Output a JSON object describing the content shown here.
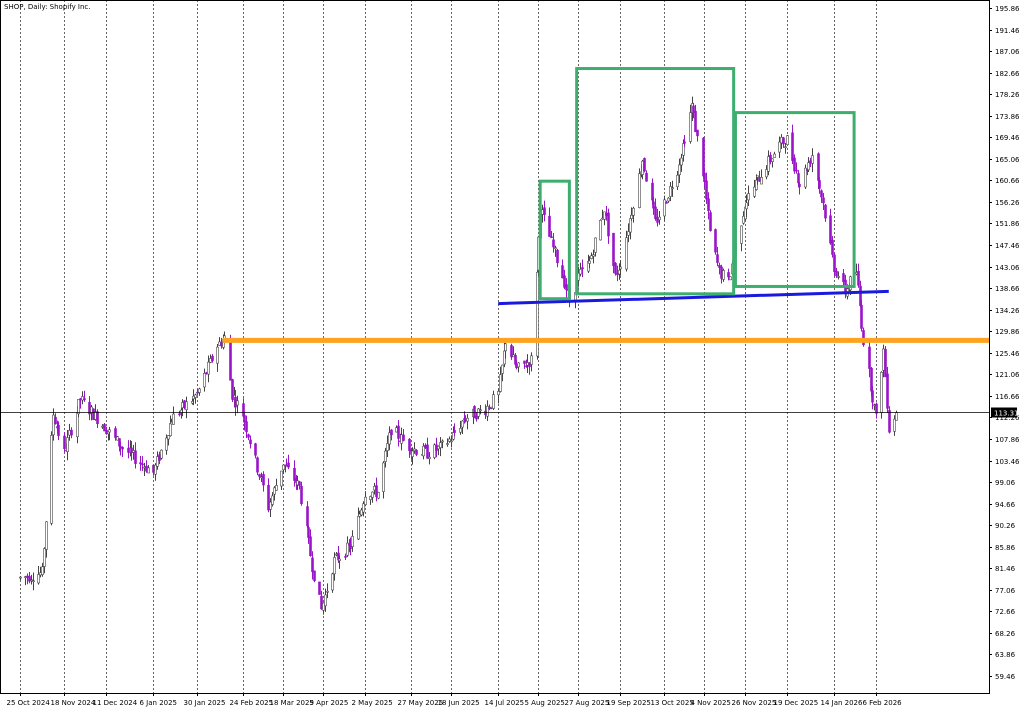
{
  "title": "SHOP, Daily:  Shopify Inc.",
  "colors": {
    "background": "#ffffff",
    "grid": "#000000",
    "bull_candle": "#444444",
    "bear_candle": "#9a14c8",
    "support_line": "#1a1adf",
    "resistance_line": "#ffa21f",
    "box": "#3dae6e",
    "price_line": "#000000",
    "price_tag_bg": "#000000",
    "price_tag_text": "#ffffff"
  },
  "chart_data": {
    "type": "candlestick",
    "title": "SHOP, Daily:  Shopify Inc.",
    "grid": true,
    "ylim": [
      57.0,
      198.0
    ],
    "y_ticks": [
      "195.86",
      "191.46",
      "187.06",
      "182.66",
      "178.26",
      "173.86",
      "169.46",
      "165.06",
      "160.66",
      "156.26",
      "151.86",
      "147.46",
      "143.06",
      "138.66",
      "134.26",
      "129.86",
      "125.46",
      "121.06",
      "116.66",
      "112.26",
      "107.86",
      "103.46",
      "99.06",
      "94.66",
      "90.26",
      "85.86",
      "81.46",
      "77.06",
      "72.66",
      "68.26",
      "63.86",
      "59.46"
    ],
    "x_ticks": [
      "25 Oct 2024",
      "18 Nov 2024",
      "11 Dec 2024",
      "6 Jan 2025",
      "30 Jan 2025",
      "24 Feb 2025",
      "18 Mar 2025",
      "9 Apr 2025",
      "2 May 2025",
      "27 May 2025",
      "18 Jun 2025",
      "14 Jul 2025",
      "5 Aug 2025",
      "27 Aug 2025",
      "19 Sep 2025",
      "13 Oct 2025",
      "4 Nov 2025",
      "26 Nov 2025",
      "19 Dec 2025",
      "14 Jan 2026",
      "6 Feb 2026"
    ],
    "last_price": "113.31",
    "ohlc_anchors": [
      [
        "25 Oct 2024",
        79.5
      ],
      [
        "6 Nov 2024",
        80.5
      ],
      [
        "12 Nov 2024",
        113.0
      ],
      [
        "18 Nov 2024",
        105.0
      ],
      [
        "27 Nov 2024",
        116.0
      ],
      [
        "11 Dec 2024",
        110.0
      ],
      [
        "20 Dec 2024",
        106.0
      ],
      [
        "6 Jan 2025",
        101.0
      ],
      [
        "16 Jan 2025",
        112.0
      ],
      [
        "30 Jan 2025",
        117.0
      ],
      [
        "10 Feb 2025",
        127.0
      ],
      [
        "14 Feb 2025",
        128.5
      ],
      [
        "18 Feb 2025",
        117.0
      ],
      [
        "24 Feb 2025",
        113.0
      ],
      [
        "4 Mar 2025",
        102.0
      ],
      [
        "10 Mar 2025",
        94.0
      ],
      [
        "18 Mar 2025",
        103.0
      ],
      [
        "27 Mar 2025",
        98.0
      ],
      [
        "3 Apr 2025",
        82.0
      ],
      [
        "8 Apr 2025",
        73.0
      ],
      [
        "15 Apr 2025",
        83.0
      ],
      [
        "24 Apr 2025",
        86.0
      ],
      [
        "30 Apr 2025",
        94.0
      ],
      [
        "2 May 2025",
        97.0
      ],
      [
        "9 May 2025",
        97.0
      ],
      [
        "16 May 2025",
        110.0
      ],
      [
        "27 May 2025",
        106.0
      ],
      [
        "5 Jun 2025",
        105.0
      ],
      [
        "12 Jun 2025",
        106.0
      ],
      [
        "18 Jun 2025",
        108.0
      ],
      [
        "25 Jun 2025",
        112.0
      ],
      [
        "7 Jul 2025",
        114.0
      ],
      [
        "14 Jul 2025",
        117.0
      ],
      [
        "18 Jul 2025",
        128.0
      ],
      [
        "24 Jul 2025",
        122.0
      ],
      [
        "1 Aug 2025",
        124.0
      ],
      [
        "6 Aug 2025",
        155.0
      ],
      [
        "12 Aug 2025",
        148.0
      ],
      [
        "19 Aug 2025",
        140.0
      ],
      [
        "22 Aug 2025",
        136.0
      ],
      [
        "27 Aug 2025",
        141.0
      ],
      [
        "2 Sep 2025",
        144.0
      ],
      [
        "10 Sep 2025",
        155.0
      ],
      [
        "16 Sep 2025",
        141.0
      ],
      [
        "19 Sep 2025",
        144.0
      ],
      [
        "1 Oct 2025",
        165.0
      ],
      [
        "8 Oct 2025",
        152.0
      ],
      [
        "13 Oct 2025",
        156.0
      ],
      [
        "20 Oct 2025",
        163.0
      ],
      [
        "28 Oct 2025",
        176.0
      ],
      [
        "4 Nov 2025",
        160.0
      ],
      [
        "7 Nov 2025",
        150.0
      ],
      [
        "12 Nov 2025",
        142.0
      ],
      [
        "17 Nov 2025",
        140.0
      ],
      [
        "26 Nov 2025",
        156.0
      ],
      [
        "5 Dec 2025",
        162.0
      ],
      [
        "15 Dec 2025",
        168.0
      ],
      [
        "19 Dec 2025",
        169.0
      ],
      [
        "26 Dec 2025",
        160.0
      ],
      [
        "2 Jan 2026",
        166.0
      ],
      [
        "8 Jan 2026",
        156.0
      ],
      [
        "14 Jan 2026",
        143.0
      ],
      [
        "20 Jan 2026",
        138.0
      ],
      [
        "26 Jan 2026",
        142.0
      ],
      [
        "30 Jan 2026",
        128.0
      ],
      [
        "6 Feb 2026",
        112.0
      ],
      [
        "10 Feb 2026",
        126.0
      ],
      [
        "13 Feb 2026",
        110.0
      ],
      [
        "17 Feb 2026",
        113.3
      ]
    ]
  },
  "annotations": {
    "boxes": [
      {
        "from": "6 Aug 2025",
        "to": "22 Aug 2025",
        "low": 136.5,
        "high": 160.5,
        "label": ""
      },
      {
        "from": "26 Aug 2025",
        "to": "20 Nov 2025",
        "low": 137.5,
        "high": 183.5,
        "label": ""
      },
      {
        "from": "21 Nov 2025",
        "to": "25 Jan 2026",
        "low": 139.0,
        "high": 174.5,
        "label": ""
      }
    ],
    "support_trendline": {
      "from": [
        "14 Jul 2025",
        135.5
      ],
      "to": [
        "13 Feb 2026",
        138.0
      ]
    },
    "resistance_level": {
      "from": "13 Feb 2025",
      "to": "end",
      "price": 128.0
    }
  }
}
